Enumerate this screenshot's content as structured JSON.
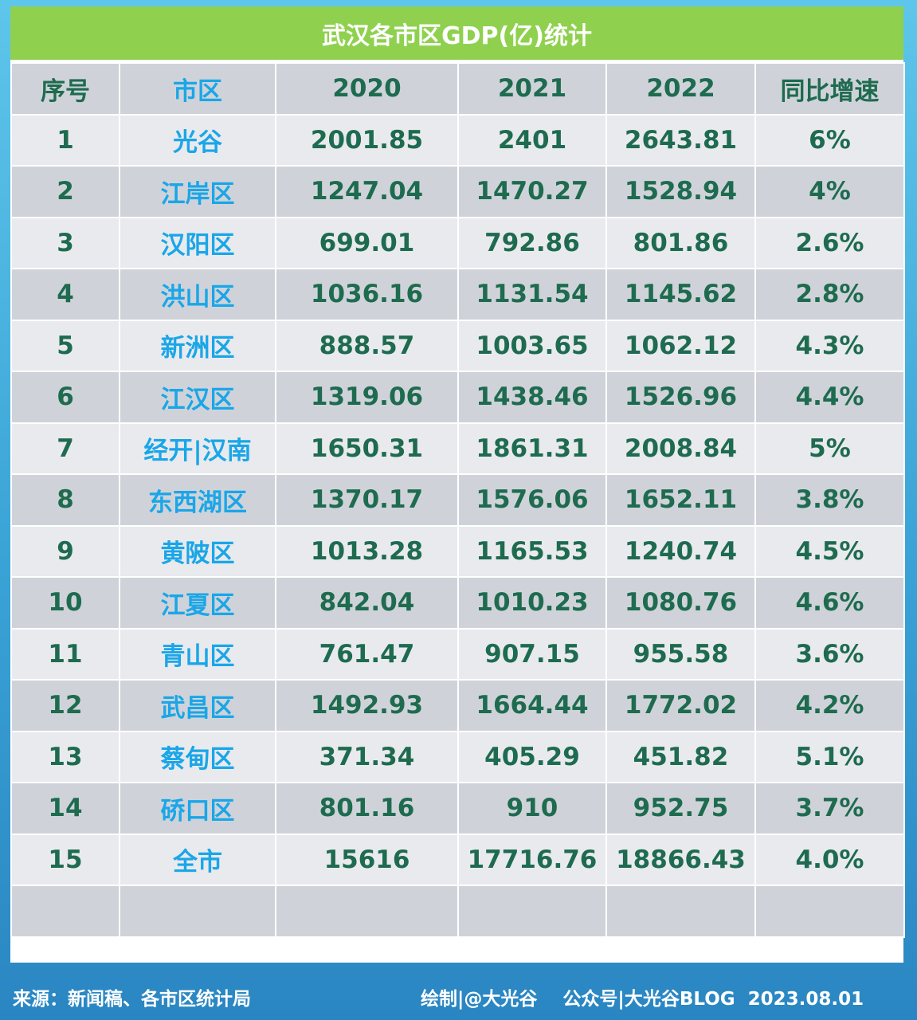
{
  "title": "武汉各市区GDP(亿)统计",
  "headers": [
    "序号",
    "市区",
    "2020",
    "2021",
    "2022",
    "同比增速"
  ],
  "rows": [
    {
      "no": "1",
      "district": "光谷",
      "y2020": "2001.85",
      "y2021": "2401",
      "y2022": "2643.81",
      "growth": "6%"
    },
    {
      "no": "2",
      "district": "江岸区",
      "y2020": "1247.04",
      "y2021": "1470.27",
      "y2022": "1528.94",
      "growth": "4%"
    },
    {
      "no": "3",
      "district": "汉阳区",
      "y2020": "699.01",
      "y2021": "792.86",
      "y2022": "801.86",
      "growth": "2.6%"
    },
    {
      "no": "4",
      "district": "洪山区",
      "y2020": "1036.16",
      "y2021": "1131.54",
      "y2022": "1145.62",
      "growth": "2.8%"
    },
    {
      "no": "5",
      "district": "新洲区",
      "y2020": "888.57",
      "y2021": "1003.65",
      "y2022": "1062.12",
      "growth": "4.3%"
    },
    {
      "no": "6",
      "district": "江汉区",
      "y2020": "1319.06",
      "y2021": "1438.46",
      "y2022": "1526.96",
      "growth": "4.4%"
    },
    {
      "no": "7",
      "district": "经开|汉南",
      "y2020": "1650.31",
      "y2021": "1861.31",
      "y2022": "2008.84",
      "growth": "5%"
    },
    {
      "no": "8",
      "district": "东西湖区",
      "y2020": "1370.17",
      "y2021": "1576.06",
      "y2022": "1652.11",
      "growth": "3.8%"
    },
    {
      "no": "9",
      "district": "黄陂区",
      "y2020": "1013.28",
      "y2021": "1165.53",
      "y2022": "1240.74",
      "growth": "4.5%"
    },
    {
      "no": "10",
      "district": "江夏区",
      "y2020": "842.04",
      "y2021": "1010.23",
      "y2022": "1080.76",
      "growth": "4.6%"
    },
    {
      "no": "11",
      "district": "青山区",
      "y2020": "761.47",
      "y2021": "907.15",
      "y2022": "955.58",
      "growth": "3.6%"
    },
    {
      "no": "12",
      "district": "武昌区",
      "y2020": "1492.93",
      "y2021": "1664.44",
      "y2022": "1772.02",
      "growth": "4.2%"
    },
    {
      "no": "13",
      "district": "蔡甸区",
      "y2020": "371.34",
      "y2021": "405.29",
      "y2022": "451.82",
      "growth": "5.1%"
    },
    {
      "no": "14",
      "district": "硚口区",
      "y2020": "801.16",
      "y2021": "910",
      "y2022": "952.75",
      "growth": "3.7%"
    },
    {
      "no": "15",
      "district": "全市",
      "y2020": "15616",
      "y2021": "17716.76",
      "y2022": "18866.43",
      "growth": "4.0%"
    }
  ],
  "footer": {
    "source": "来源：新闻稿、各市区统计局",
    "credit": "绘制|@大光谷    公众号|大光谷BLOG  2023.08.01"
  },
  "colors": {
    "title_bg": "#8fd14f",
    "district_text": "#1aa6e8",
    "value_text": "#1e6b4f",
    "row_light": "#e9eaee",
    "row_dark": "#cfd3d9"
  }
}
